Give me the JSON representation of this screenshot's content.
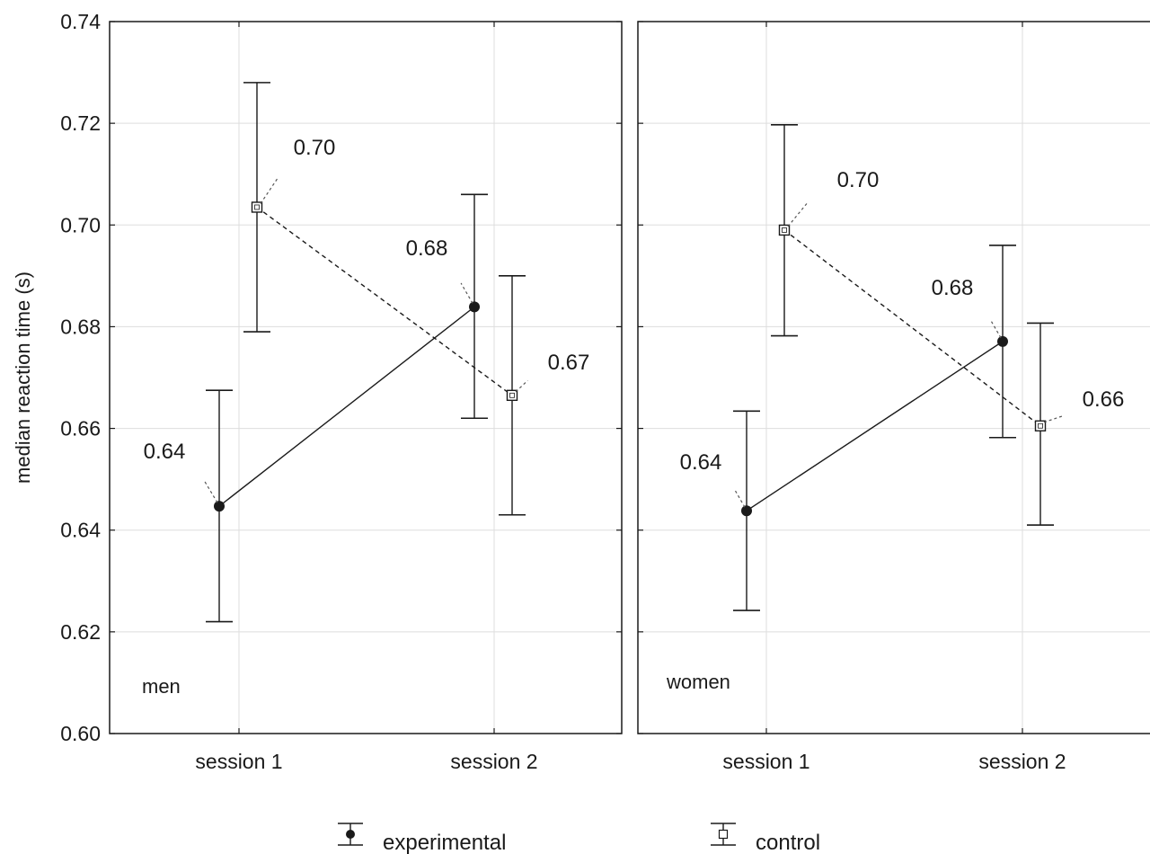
{
  "chart_data": {
    "type": "line",
    "ylabel": "median reaction time (s)",
    "ylim": [
      0.6,
      0.74
    ],
    "yticks": [
      "0.60",
      "0.62",
      "0.64",
      "0.66",
      "0.68",
      "0.70",
      "0.72",
      "0.74"
    ],
    "categories": [
      "session 1",
      "session 2"
    ],
    "grid": true,
    "legend_position": "bottom",
    "panels": [
      {
        "label": "men",
        "series": [
          {
            "name": "experimental",
            "marker": "filled-circle",
            "line": "solid",
            "values": [
              0.6447,
              0.6839
            ],
            "lower": [
              0.622,
              0.662
            ],
            "upper": [
              0.6675,
              0.706
            ],
            "labels": [
              "0.64",
              "0.68"
            ]
          },
          {
            "name": "control",
            "marker": "open-square",
            "line": "dashed",
            "values": [
              0.7035,
              0.6665
            ],
            "lower": [
              0.679,
              0.643
            ],
            "upper": [
              0.728,
              0.69
            ],
            "labels": [
              "0.70",
              "0.67"
            ]
          }
        ]
      },
      {
        "label": "women",
        "series": [
          {
            "name": "experimental",
            "marker": "filled-circle",
            "line": "solid",
            "values": [
              0.6438,
              0.6771
            ],
            "lower": [
              0.6242,
              0.6582
            ],
            "upper": [
              0.6634,
              0.696
            ],
            "labels": [
              "0.64",
              "0.68"
            ]
          },
          {
            "name": "control",
            "marker": "open-square",
            "line": "dashed",
            "values": [
              0.699,
              0.6605
            ],
            "lower": [
              0.6782,
              0.641
            ],
            "upper": [
              0.7197,
              0.6807
            ],
            "labels": [
              "0.70",
              "0.66"
            ]
          }
        ]
      }
    ],
    "legend": [
      {
        "name": "experimental",
        "marker": "filled-circle"
      },
      {
        "name": "control",
        "marker": "open-square"
      }
    ],
    "colors": {
      "line": "#1a1a1a",
      "grid": "#dddddd",
      "axis": "#1a1a1a",
      "label_leader": "#555555"
    }
  }
}
